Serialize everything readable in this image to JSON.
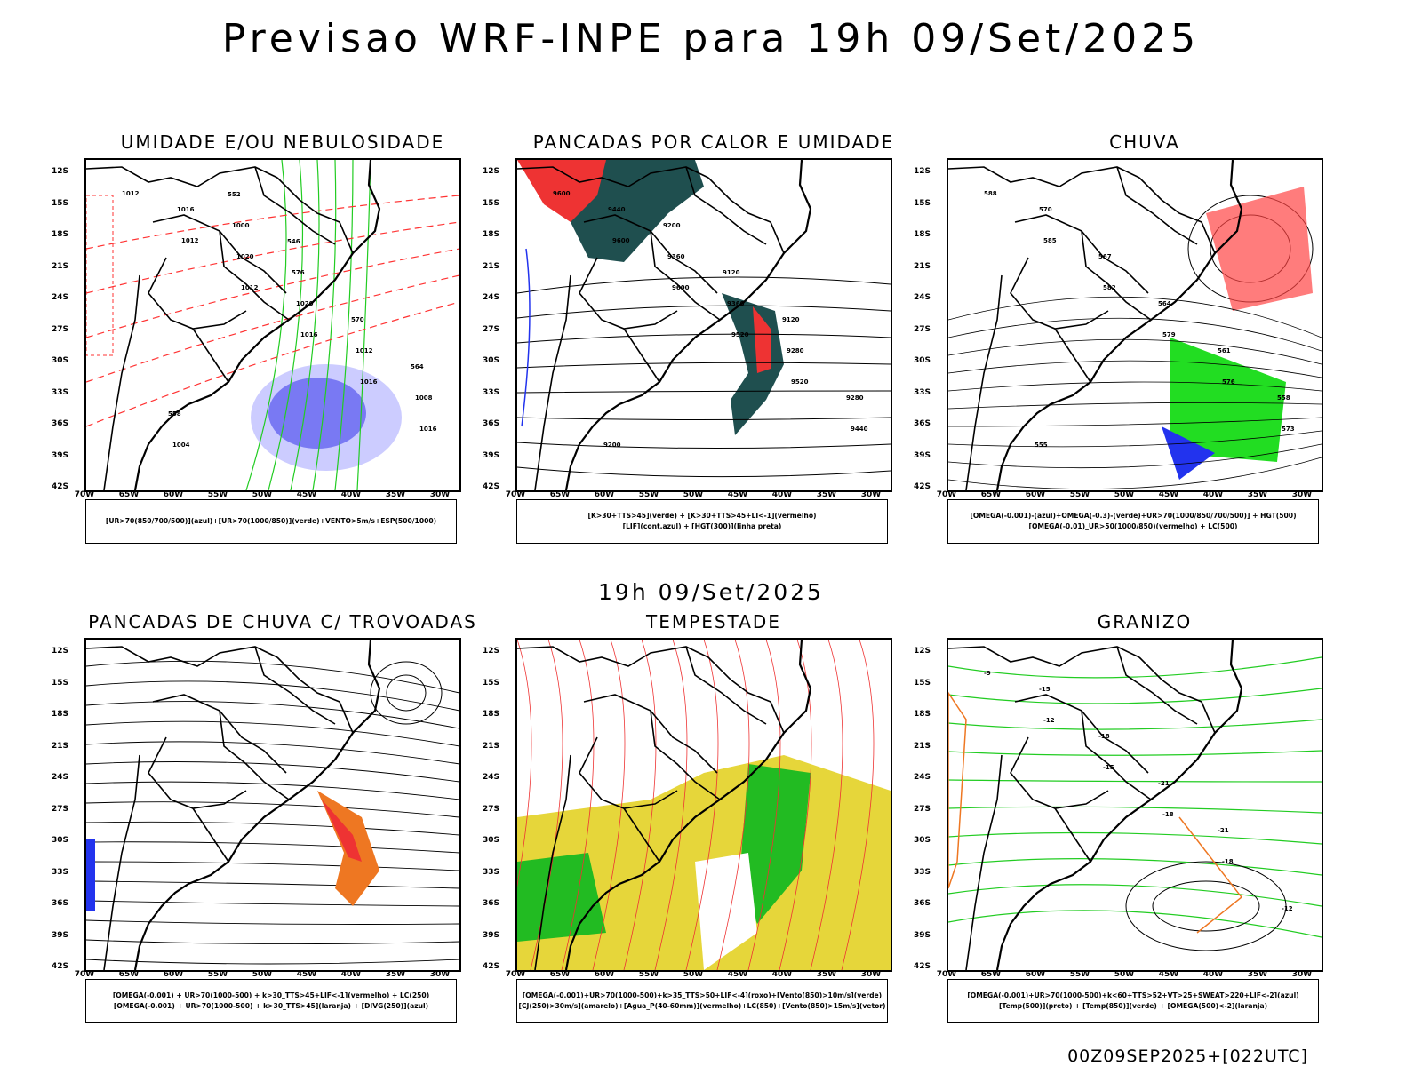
{
  "title": "Previsao WRF-INPE  para 19h 09/Set/2025",
  "mid_title": "19h 09/Set/2025",
  "footer": "00Z09SEP2025+[022UTC]",
  "lat_labels": [
    "12S",
    "15S",
    "18S",
    "21S",
    "24S",
    "27S",
    "30S",
    "33S",
    "36S",
    "39S",
    "42S"
  ],
  "lon_labels": [
    "70W",
    "65W",
    "60W",
    "55W",
    "50W",
    "45W",
    "40W",
    "35W",
    "30W"
  ],
  "panels": [
    {
      "title": "UMIDADE E/OU NEBULOSIDADE",
      "legend": [
        "[UR>70(850/700/500)](azul)+[UR>70(1000/850)](verde)+VENTO>5m/s+ESP(500/1000)"
      ],
      "labels": [
        "1012",
        "1012",
        "1012",
        "1016",
        "1016",
        "1016",
        "1016",
        "1020",
        "1020",
        "1012",
        "1008",
        "1004",
        "1000",
        "576",
        "570",
        "564",
        "558",
        "552",
        "546"
      ]
    },
    {
      "title": "PANCADAS POR CALOR E UMIDADE",
      "legend": [
        "[K>30+TTS>45](verde) + [K>30+TTS>45+LI<-1](vermelho)",
        "[LIF](cont.azul) + [HGT(300)](linha preta)"
      ],
      "labels": [
        "9600",
        "9600",
        "9600",
        "9520",
        "9520",
        "9440",
        "9440",
        "9360",
        "9360",
        "9280",
        "9280",
        "9200",
        "9200",
        "9120",
        "9120"
      ]
    },
    {
      "title": "CHUVA",
      "legend": [
        "[OMEGA(-0.001)-(azul)+OMEGA(-0.3)-(verde)+UR>70(1000/850/700/500)] + HGT(500)",
        "[OMEGA(-0.01)_UR>50(1000/850)(vermelho) + LC(500)"
      ],
      "labels": [
        "588",
        "585",
        "582",
        "579",
        "576",
        "573",
        "570",
        "567",
        "564",
        "561",
        "558",
        "555"
      ]
    },
    {
      "title": "PANCADAS DE CHUVA C/ TROVOADAS",
      "legend": [
        "[OMEGA(-0.001) + UR>70(1000-500) + k>30_TTS>45+LIF<-1](vermelho) + LC(250)",
        "[OMEGA(-0.001) + UR>70(1000-500) + k>30_TTS>45](laranja) + [DIVG(250)](azul)"
      ],
      "labels": []
    },
    {
      "title": "TEMPESTADE",
      "legend": [
        "[OMEGA(-0.001)+UR>70(1000-500)+k>35_TTS>50+LIF<-4](roxo)+[Vento(850)>10m/s](verde)",
        "[CJ(250)>30m/s](amarelo)+[Agua_P(40-60mm)](vermelho)+LC(850)+[Vento(850)>15m/s](vetor)"
      ],
      "labels": []
    },
    {
      "title": "GRANIZO",
      "legend": [
        "[OMEGA(-0.001)+UR>70(1000-500)+k<60+TTS>52+VT>25+SWEAT>220+LIF<-2](azul)",
        "[Temp(500)](preto) + [Temp(850)](verde) + [OMEGA(500)<-2](laranja)"
      ],
      "labels": [
        "-9",
        "-12",
        "-15",
        "-18",
        "-18",
        "-12",
        "-15",
        "-18",
        "-21",
        "-21"
      ]
    }
  ]
}
